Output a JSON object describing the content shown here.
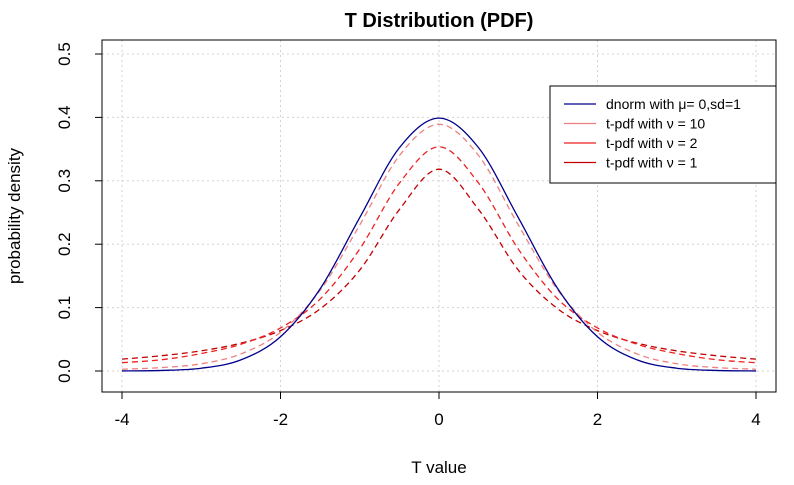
{
  "chart_data": {
    "type": "line",
    "title": "T Distribution (PDF)",
    "xlabel": "T value",
    "ylabel": "probability density",
    "xlim": [
      -4,
      4
    ],
    "ylim": [
      0,
      0.5
    ],
    "x_ticks": [
      -4,
      -2,
      0,
      2,
      4
    ],
    "y_ticks": [
      0.0,
      0.1,
      0.2,
      0.3,
      0.4,
      0.5
    ],
    "x_tick_labels": [
      "-4",
      "-2",
      "0",
      "2",
      "4"
    ],
    "y_tick_labels": [
      "0.0",
      "0.1",
      "0.2",
      "0.3",
      "0.4",
      "0.5"
    ],
    "grid": true,
    "legend_position": "top-right",
    "series": [
      {
        "name": "dnorm with  μ= 0,sd=1",
        "color": "#00008B",
        "dash": "solid",
        "x": [
          -4,
          -3.5,
          -3,
          -2.5,
          -2,
          -1.5,
          -1,
          -0.5,
          0,
          0.5,
          1,
          1.5,
          2,
          2.5,
          3,
          3.5,
          4
        ],
        "y": [
          0.0001,
          0.0009,
          0.0044,
          0.0175,
          0.054,
          0.1295,
          0.242,
          0.3521,
          0.3989,
          0.3521,
          0.242,
          0.1295,
          0.054,
          0.0175,
          0.0044,
          0.0009,
          0.0001
        ]
      },
      {
        "name": "t-pdf with ν = 10",
        "color": "#F08080",
        "dash": "dashed",
        "x": [
          -4,
          -3.5,
          -3,
          -2.5,
          -2,
          -1.5,
          -1,
          -0.5,
          0,
          0.5,
          1,
          1.5,
          2,
          2.5,
          3,
          3.5,
          4
        ],
        "y": [
          0.0028,
          0.0054,
          0.0114,
          0.0269,
          0.0611,
          0.1274,
          0.2304,
          0.3397,
          0.3891,
          0.3397,
          0.2304,
          0.1274,
          0.0611,
          0.0269,
          0.0114,
          0.0054,
          0.0028
        ]
      },
      {
        "name": "t-pdf with ν = 2",
        "color": "#EE2222",
        "dash": "dashed",
        "x": [
          -4,
          -3.5,
          -3,
          -2.5,
          -2,
          -1.5,
          -1,
          -0.5,
          0,
          0.5,
          1,
          1.5,
          2,
          2.5,
          3,
          3.5,
          4
        ],
        "y": [
          0.0131,
          0.0178,
          0.0275,
          0.0422,
          0.068,
          0.1134,
          0.1925,
          0.2963,
          0.3536,
          0.2963,
          0.1925,
          0.1134,
          0.068,
          0.0422,
          0.0275,
          0.0178,
          0.0131
        ]
      },
      {
        "name": "t-pdf with ν = 1",
        "color": "#C00000",
        "dash": "dashed",
        "x": [
          -4,
          -3.5,
          -3,
          -2.5,
          -2,
          -1.5,
          -1,
          -0.5,
          0,
          0.5,
          1,
          1.5,
          2,
          2.5,
          3,
          3.5,
          4
        ],
        "y": [
          0.0187,
          0.0241,
          0.0318,
          0.0439,
          0.0637,
          0.0979,
          0.1592,
          0.2546,
          0.3183,
          0.2546,
          0.1592,
          0.0979,
          0.0637,
          0.0439,
          0.0318,
          0.0241,
          0.0187
        ]
      }
    ]
  }
}
